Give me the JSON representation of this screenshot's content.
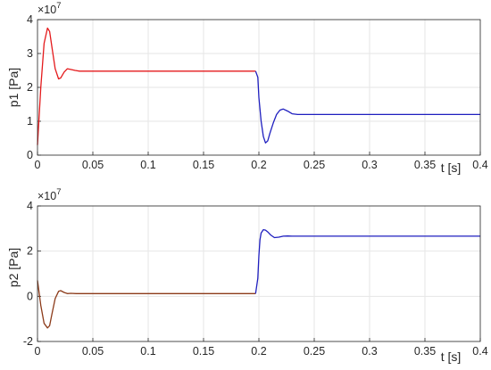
{
  "chart_data": [
    {
      "type": "line",
      "title": "",
      "xlabel": "t [s]",
      "ylabel": "p1 [Pa]",
      "exponent": "×10",
      "exponent_power": "7",
      "xlim": [
        0,
        0.4
      ],
      "ylim": [
        0,
        4
      ],
      "xticks": [
        0,
        0.05,
        0.1,
        0.15,
        0.2,
        0.25,
        0.3,
        0.35,
        0.4
      ],
      "xtick_labels": [
        "0",
        "0.05",
        "0.1",
        "0.15",
        "0.2",
        "0.25",
        "0.3",
        "0.35",
        "0.4"
      ],
      "yticks": [
        0,
        1,
        2,
        3,
        4
      ],
      "ytick_labels": [
        "0",
        "1",
        "2",
        "3",
        "4"
      ],
      "grid": true,
      "series": [
        {
          "color": "#e41a1c",
          "x": [
            0,
            0.003,
            0.006,
            0.009,
            0.011,
            0.013,
            0.016,
            0.019,
            0.021,
            0.024,
            0.027,
            0.03,
            0.034,
            0.038,
            0.045,
            0.06,
            0.1,
            0.15,
            0.197
          ],
          "y": [
            0.3,
            2.0,
            3.3,
            3.75,
            3.65,
            3.2,
            2.55,
            2.25,
            2.28,
            2.45,
            2.55,
            2.53,
            2.5,
            2.48,
            2.48,
            2.48,
            2.48,
            2.48,
            2.48
          ]
        },
        {
          "color": "#1f1fbf",
          "x": [
            0.197,
            0.199,
            0.2,
            0.202,
            0.204,
            0.206,
            0.208,
            0.21,
            0.213,
            0.216,
            0.219,
            0.222,
            0.226,
            0.23,
            0.235,
            0.24,
            0.25,
            0.3,
            0.35,
            0.4
          ],
          "y": [
            2.48,
            2.3,
            1.7,
            1.0,
            0.55,
            0.36,
            0.42,
            0.65,
            0.95,
            1.2,
            1.33,
            1.36,
            1.3,
            1.22,
            1.2,
            1.2,
            1.2,
            1.2,
            1.2,
            1.2
          ]
        }
      ]
    },
    {
      "type": "line",
      "title": "",
      "xlabel": "t [s]",
      "ylabel": "p2 [Pa]",
      "exponent": "×10",
      "exponent_power": "7",
      "xlim": [
        0,
        0.4
      ],
      "ylim": [
        -2,
        4
      ],
      "xticks": [
        0,
        0.05,
        0.1,
        0.15,
        0.2,
        0.25,
        0.3,
        0.35,
        0.4
      ],
      "xtick_labels": [
        "0",
        "0.05",
        "0.1",
        "0.15",
        "0.2",
        "0.25",
        "0.3",
        "0.35",
        "0.4"
      ],
      "yticks": [
        -2,
        0,
        2,
        4
      ],
      "ytick_labels": [
        "-2",
        "0",
        "2",
        "4"
      ],
      "grid": true,
      "series": [
        {
          "color": "#8c3b1a",
          "x": [
            0,
            0.003,
            0.006,
            0.009,
            0.011,
            0.013,
            0.016,
            0.019,
            0.021,
            0.024,
            0.027,
            0.03,
            0.035,
            0.045,
            0.06,
            0.1,
            0.15,
            0.197
          ],
          "y": [
            0.7,
            -0.4,
            -1.2,
            -1.4,
            -1.3,
            -0.8,
            -0.1,
            0.22,
            0.25,
            0.17,
            0.12,
            0.13,
            0.12,
            0.12,
            0.12,
            0.12,
            0.12,
            0.12
          ]
        },
        {
          "color": "#1f1fbf",
          "x": [
            0.197,
            0.199,
            0.2,
            0.201,
            0.202,
            0.204,
            0.206,
            0.208,
            0.211,
            0.214,
            0.218,
            0.222,
            0.226,
            0.23,
            0.24,
            0.25,
            0.3,
            0.35,
            0.4
          ],
          "y": [
            0.12,
            0.8,
            1.8,
            2.5,
            2.8,
            2.95,
            2.93,
            2.85,
            2.7,
            2.6,
            2.62,
            2.66,
            2.67,
            2.66,
            2.66,
            2.66,
            2.66,
            2.66,
            2.66
          ]
        }
      ]
    }
  ]
}
